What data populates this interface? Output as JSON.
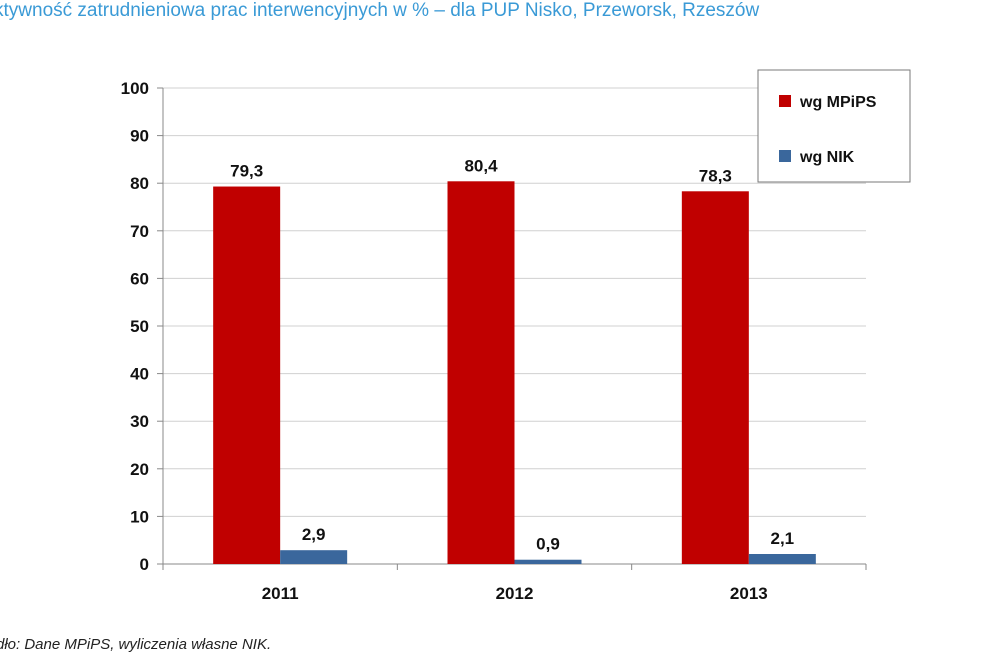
{
  "title": "ktywność zatrudnieniowa prac interwencyjnych w % – dla PUP Nisko, Przeworsk, Rzeszów",
  "source": "dło: Dane MPiPS, wyliczenia własne NIK.",
  "colors": {
    "series1": "#c00000",
    "series2": "#3a679c",
    "grid": "#d0d0d0",
    "axis": "#888888"
  },
  "chart_data": {
    "type": "bar",
    "categories": [
      "2011",
      "2012",
      "2013"
    ],
    "series": [
      {
        "name": "wg MPiPS",
        "values": [
          79.3,
          80.4,
          78.3
        ],
        "labels": [
          "79,3",
          "80,4",
          "78,3"
        ]
      },
      {
        "name": "wg NIK",
        "values": [
          2.9,
          0.9,
          2.1
        ],
        "labels": [
          "2,9",
          "0,9",
          "2,1"
        ]
      }
    ],
    "ylim": [
      0,
      100
    ],
    "yticks": [
      0,
      10,
      20,
      30,
      40,
      50,
      60,
      70,
      80,
      90,
      100
    ],
    "grid": true,
    "legend": "top-right"
  }
}
